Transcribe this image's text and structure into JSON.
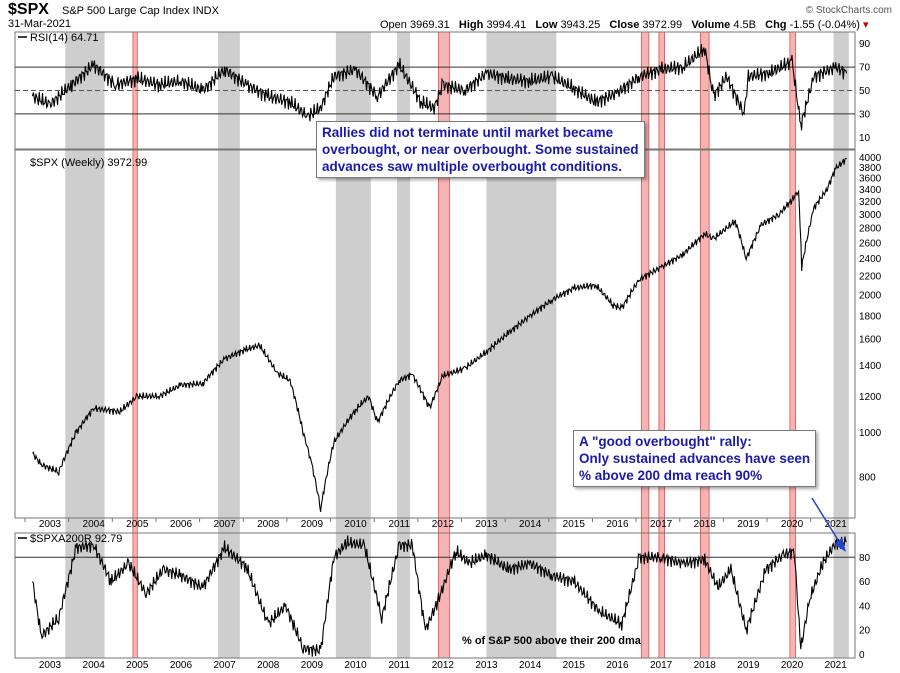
{
  "header": {
    "symbol": "$SPX",
    "description": "S&P 500 Large Cap Index INDX",
    "date": "31-Mar-2021",
    "open_label": "Open",
    "open": "3969.31",
    "high_label": "High",
    "high": "3994.41",
    "low_label": "Low",
    "low": "3943.25",
    "close_label": "Close",
    "close": "3972.99",
    "volume_label": "Volume",
    "volume": "4.5B",
    "chg_label": "Chg",
    "chg": "-1.55 (-0.04%)",
    "copyright": "© StockCharts.com"
  },
  "annotations": {
    "top_callout": "Rallies did not terminate until market became\noverbought, or near overbought. Some sustained\nadvances saw multiple overbought conditions.",
    "bottom_callout": "A \"good overbought\" rally:\nOnly sustained advances have seen\n% above 200 dma reach 90%",
    "breadth_note": "% of S&P 500 above their 200 dma"
  },
  "colors": {
    "gray_band": "#bdbdbd",
    "red_band": "#f4a6a6",
    "red_band_edge": "#e05050",
    "line": "#000000",
    "callout_text": "#1a1aaa",
    "arrow": "#2244cc"
  },
  "chart_data": [
    {
      "type": "line",
      "panel": "RSI",
      "legend": "RSI(14) 64.71",
      "yticks": [
        10,
        30,
        50,
        70,
        90
      ],
      "ylim": [
        0,
        100
      ],
      "reference_lines": [
        70,
        30
      ],
      "reference_dashed": [
        50
      ],
      "x_years": [
        2002.6,
        2003,
        2003.5,
        2004,
        2004.5,
        2005,
        2005.5,
        2006,
        2006.5,
        2007,
        2007.5,
        2008,
        2008.5,
        2008.9,
        2009.2,
        2009.5,
        2010,
        2010.5,
        2011,
        2011.5,
        2011.8,
        2012,
        2012.5,
        2013,
        2013.5,
        2014,
        2014.5,
        2015,
        2015.5,
        2016,
        2016.5,
        2017,
        2017.5,
        2018,
        2018.2,
        2018.5,
        2018.9,
        2019,
        2019.5,
        2020,
        2020.2,
        2020.5,
        2021,
        2021.25
      ],
      "values": [
        45,
        38,
        55,
        72,
        55,
        60,
        55,
        58,
        50,
        68,
        55,
        45,
        40,
        28,
        35,
        62,
        68,
        45,
        72,
        40,
        35,
        55,
        50,
        65,
        60,
        58,
        62,
        52,
        40,
        48,
        62,
        68,
        70,
        86,
        45,
        62,
        30,
        62,
        65,
        75,
        20,
        62,
        70,
        64.71
      ]
    },
    {
      "type": "line",
      "panel": "Price",
      "legend": "$SPX (Weekly) 3972.99",
      "scale": "log",
      "yticks": [
        800,
        1000,
        1200,
        1400,
        1600,
        1800,
        2000,
        2200,
        2400,
        2600,
        2800,
        3000,
        3200,
        3400,
        3600,
        3800,
        4000
      ],
      "ylim": [
        650,
        4150
      ],
      "xticks": [
        "2003",
        "2004",
        "2005",
        "2006",
        "2007",
        "2008",
        "2009",
        "2010",
        "2011",
        "2012",
        "2013",
        "2014",
        "2015",
        "2016",
        "2017",
        "2018",
        "2019",
        "2020",
        "2021"
      ],
      "x_years": [
        2002.6,
        2002.8,
        2003.2,
        2003.6,
        2004,
        2004.6,
        2005,
        2005.5,
        2006,
        2006.5,
        2007,
        2007.5,
        2007.8,
        2008.2,
        2008.5,
        2008.8,
        2009.0,
        2009.2,
        2009.5,
        2010,
        2010.3,
        2010.5,
        2011,
        2011.3,
        2011.7,
        2012,
        2012.5,
        2013,
        2013.5,
        2014,
        2014.5,
        2015,
        2015.5,
        2015.9,
        2016.1,
        2016.5,
        2017,
        2017.5,
        2018,
        2018.2,
        2018.7,
        2018.95,
        2019.3,
        2019.7,
        2020,
        2020.15,
        2020.22,
        2020.5,
        2020.8,
        2021,
        2021.25
      ],
      "values": [
        900,
        850,
        820,
        1000,
        1130,
        1110,
        1200,
        1200,
        1270,
        1280,
        1450,
        1520,
        1550,
        1350,
        1300,
        1000,
        850,
        680,
        950,
        1120,
        1200,
        1050,
        1300,
        1340,
        1130,
        1330,
        1380,
        1500,
        1650,
        1800,
        1950,
        2070,
        2100,
        1900,
        1870,
        2160,
        2300,
        2450,
        2720,
        2650,
        2900,
        2400,
        2850,
        3000,
        3230,
        3380,
        2300,
        3100,
        3400,
        3780,
        3972.99
      ]
    },
    {
      "type": "line",
      "panel": "Breadth",
      "legend": "$SPXA200R 92.79",
      "yticks": [
        0,
        20,
        40,
        60,
        80
      ],
      "ylim": [
        -3,
        100
      ],
      "reference_lines": [
        80
      ],
      "x_years": [
        2002.6,
        2002.8,
        2003.2,
        2003.6,
        2004,
        2004.4,
        2004.8,
        2005.2,
        2005.6,
        2006,
        2006.5,
        2007,
        2007.5,
        2008,
        2008.4,
        2008.8,
        2009.2,
        2009.5,
        2009.8,
        2010.2,
        2010.6,
        2011,
        2011.3,
        2011.6,
        2011.9,
        2012.3,
        2012.6,
        2013,
        2013.5,
        2014,
        2014.5,
        2015,
        2015.6,
        2016.1,
        2016.5,
        2017,
        2017.5,
        2018,
        2018.3,
        2018.6,
        2018.95,
        2019.4,
        2019.8,
        2020.05,
        2020.2,
        2020.4,
        2020.7,
        2021,
        2021.25
      ],
      "values": [
        60,
        15,
        30,
        88,
        90,
        60,
        75,
        50,
        70,
        65,
        55,
        88,
        72,
        25,
        40,
        5,
        3,
        80,
        92,
        90,
        30,
        90,
        90,
        20,
        45,
        85,
        75,
        82,
        70,
        75,
        65,
        60,
        35,
        25,
        80,
        80,
        75,
        78,
        55,
        70,
        20,
        70,
        82,
        85,
        5,
        45,
        75,
        92,
        92.79
      ]
    }
  ],
  "bands": {
    "gray": [
      [
        2003.35,
        2004.25
      ],
      [
        2006.85,
        2007.35
      ],
      [
        2009.55,
        2010.35
      ],
      [
        2010.95,
        2011.25
      ],
      [
        2013.0,
        2014.6
      ],
      [
        2020.95,
        2021.3
      ]
    ],
    "red": [
      [
        2004.9,
        2005.0
      ],
      [
        2011.9,
        2012.15
      ],
      [
        2016.55,
        2016.72
      ],
      [
        2016.95,
        2017.08
      ],
      [
        2017.9,
        2018.1
      ],
      [
        2019.95,
        2020.08
      ]
    ]
  }
}
